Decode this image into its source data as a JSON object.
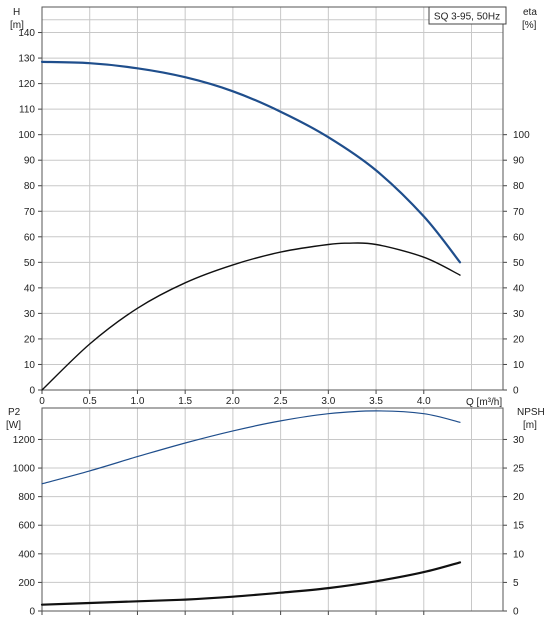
{
  "chart_data": [
    {
      "type": "line",
      "title": "SQ 3-95, 50Hz",
      "xlabel": "Q [m³/h]",
      "left_axis": {
        "label": "H",
        "unit": "[m]",
        "ylim": [
          0,
          150
        ],
        "ticks": [
          0,
          10,
          20,
          30,
          40,
          50,
          60,
          70,
          80,
          90,
          100,
          110,
          120,
          130,
          140
        ]
      },
      "right_axis": {
        "label": "eta",
        "unit": "[%]",
        "ylim": [
          0,
          150
        ],
        "ticks": [
          0,
          10,
          20,
          30,
          40,
          50,
          60,
          70,
          80,
          90,
          100
        ]
      },
      "xlim": [
        0,
        4.83
      ],
      "xticks": [
        0,
        0.5,
        1.0,
        1.5,
        2.0,
        2.5,
        3.0,
        3.5,
        4.0
      ],
      "xtick_labels": [
        "0",
        "0.5",
        "1.0",
        "1.5",
        "2.0",
        "2.5",
        "3.0",
        "3.5",
        "4.0"
      ],
      "grid": true,
      "series": [
        {
          "axis": "left",
          "color": "#1f4e8c",
          "weight": 2.2,
          "x": [
            0,
            0.5,
            1.0,
            1.5,
            2.0,
            2.5,
            3.0,
            3.5,
            4.0,
            4.38
          ],
          "y": [
            128.5,
            128,
            126,
            122.5,
            117,
            109,
            99,
            86,
            68,
            50
          ]
        },
        {
          "axis": "right",
          "color": "#111111",
          "weight": 1.4,
          "x": [
            0,
            0.5,
            1.0,
            1.5,
            2.0,
            2.5,
            3.0,
            3.2,
            3.5,
            4.0,
            4.38
          ],
          "y": [
            0,
            18,
            32,
            42,
            49,
            54,
            57,
            57.5,
            57,
            52,
            45
          ]
        }
      ]
    },
    {
      "type": "line",
      "xlabel": "",
      "left_axis": {
        "label": "P2",
        "unit": "[W]",
        "ylim": [
          0,
          1420
        ],
        "ticks": [
          0,
          200,
          400,
          600,
          800,
          1000,
          1200
        ]
      },
      "right_axis": {
        "label": "NPSH",
        "unit": "[m]",
        "ylim": [
          0,
          35.5
        ],
        "ticks": [
          0,
          5,
          10,
          15,
          20,
          25,
          30
        ]
      },
      "xlim": [
        0,
        4.83
      ],
      "xticks": [
        0,
        0.5,
        1.0,
        1.5,
        2.0,
        2.5,
        3.0,
        3.5,
        4.0
      ],
      "grid": true,
      "series": [
        {
          "axis": "left",
          "color": "#1f4e8c",
          "weight": 1.2,
          "x": [
            0,
            0.5,
            1.0,
            1.5,
            2.0,
            2.5,
            3.0,
            3.5,
            4.0,
            4.38
          ],
          "y": [
            890,
            980,
            1080,
            1175,
            1260,
            1330,
            1380,
            1400,
            1380,
            1320
          ]
        },
        {
          "axis": "right",
          "color": "#111111",
          "weight": 2.2,
          "x": [
            0,
            0.5,
            1.0,
            1.5,
            2.0,
            2.5,
            3.0,
            3.5,
            4.0,
            4.38
          ],
          "y": [
            1.1,
            1.4,
            1.7,
            2.0,
            2.5,
            3.2,
            4.0,
            5.2,
            6.8,
            8.5
          ]
        }
      ]
    }
  ]
}
